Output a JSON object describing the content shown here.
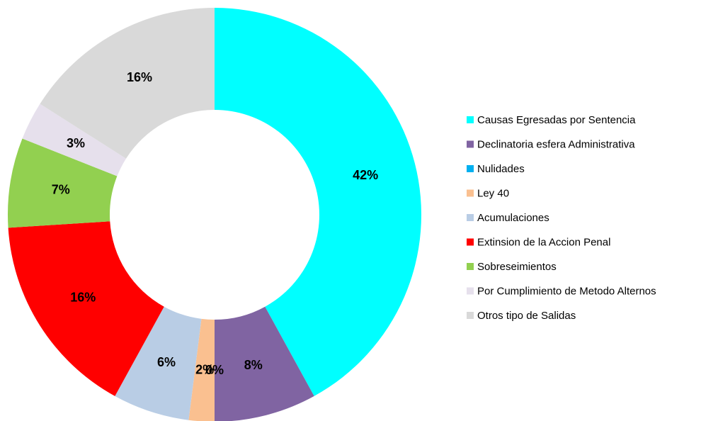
{
  "chart_data": {
    "type": "pie",
    "categories": [
      "Causas Egresadas por Sentencia",
      "Declinatoria esfera Administrativa",
      "Nulidades",
      "Ley 40",
      "Acumulaciones",
      "Extinsion de la Accion Penal",
      "Sobreseimientos",
      "Por Cumplimiento de Metodo Alternos",
      "Otros tipo de Salidas"
    ],
    "values": [
      42,
      8,
      0,
      2,
      6,
      16,
      7,
      3,
      16
    ],
    "value_labels": [
      "42%",
      "8%",
      "0%",
      "2%",
      "6%",
      "16%",
      "7%",
      "3%",
      "16%"
    ],
    "colors": [
      "#00FFFF",
      "#8064A2",
      "#00B0F0",
      "#FAC090",
      "#B9CDE5",
      "#FF0000",
      "#92D050",
      "#E6E0EC",
      "#D9D9D9"
    ],
    "donut": true,
    "legend": "right"
  }
}
